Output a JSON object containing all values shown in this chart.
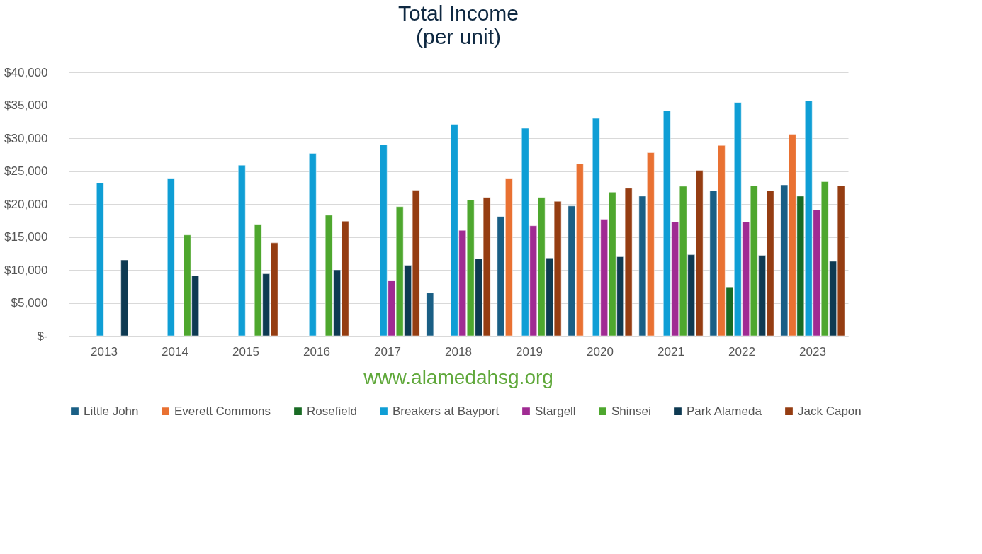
{
  "chart_data": {
    "type": "bar",
    "title": "Total Income",
    "subtitle": "(per unit)",
    "categories": [
      "2013",
      "2014",
      "2015",
      "2016",
      "2017",
      "2018",
      "2019",
      "2020",
      "2021",
      "2022",
      "2023"
    ],
    "series": [
      {
        "name": "Little John",
        "color": "#1a5f85",
        "values": [
          null,
          null,
          null,
          null,
          null,
          6500,
          18100,
          19700,
          21200,
          22000,
          22900
        ]
      },
      {
        "name": "Everett Commons",
        "color": "#e97132",
        "values": [
          null,
          null,
          null,
          null,
          null,
          null,
          23900,
          26100,
          27800,
          28900,
          30600
        ]
      },
      {
        "name": "Rosefield",
        "color": "#196b24",
        "values": [
          null,
          null,
          null,
          null,
          null,
          null,
          null,
          null,
          null,
          7400,
          21200
        ]
      },
      {
        "name": "Breakers at Bayport",
        "color": "#0f9ed5",
        "values": [
          23200,
          23900,
          25900,
          27700,
          29000,
          32100,
          31500,
          33000,
          34200,
          35400,
          35700
        ]
      },
      {
        "name": "Stargell",
        "color": "#a02b93",
        "values": [
          null,
          null,
          null,
          null,
          8400,
          16000,
          16700,
          17700,
          17300,
          17300,
          19100
        ]
      },
      {
        "name": "Shinsei",
        "color": "#4ea72e",
        "values": [
          null,
          15300,
          16900,
          18300,
          19600,
          20600,
          21000,
          21800,
          22700,
          22800,
          23400
        ]
      },
      {
        "name": "Park Alameda",
        "color": "#0e3a52",
        "values": [
          11500,
          9100,
          9400,
          10000,
          10700,
          11700,
          11800,
          12000,
          12300,
          12200,
          11300
        ]
      },
      {
        "name": "Jack Capon",
        "color": "#953d12",
        "values": [
          null,
          null,
          14100,
          17400,
          22100,
          21000,
          20400,
          22400,
          25100,
          22000,
          22800
        ]
      }
    ],
    "ylim": [
      0,
      40000
    ],
    "yticks": [
      {
        "value": 0,
        "label": "$-"
      },
      {
        "value": 5000,
        "label": "$5,000"
      },
      {
        "value": 10000,
        "label": "$10,000"
      },
      {
        "value": 15000,
        "label": "$15,000"
      },
      {
        "value": 20000,
        "label": "$20,000"
      },
      {
        "value": 25000,
        "label": "$25,000"
      },
      {
        "value": 30000,
        "label": "$30,000"
      },
      {
        "value": 35000,
        "label": "$35,000"
      },
      {
        "value": 40000,
        "label": "$40,000"
      }
    ],
    "grid": "y",
    "legend": "bottom",
    "annotations": [
      "www.alamedahsg.org"
    ]
  }
}
